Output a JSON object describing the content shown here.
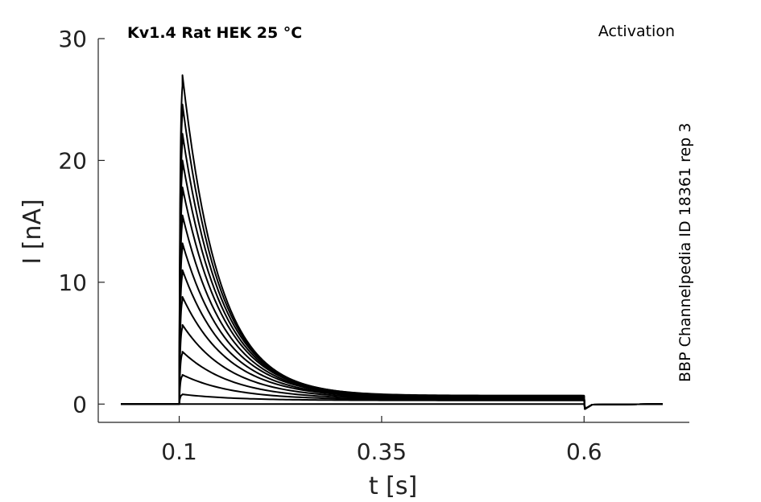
{
  "chart_data": {
    "type": "line",
    "title": "Kv1.4  Rat  HEK  25 °C",
    "annotation_right": "Activation",
    "side_label": "BBP Channelpedia ID 18361 rep 3",
    "xlabel": "t [s]",
    "ylabel": "I [nA]",
    "xlim": [
      -0.0,
      0.73
    ],
    "ylim": [
      -1.5,
      30
    ],
    "xticks": [
      0.1,
      0.35,
      0.6
    ],
    "xtick_labels": [
      "0.1",
      "0.35",
      "0.6"
    ],
    "yticks": [
      0,
      10,
      20,
      30
    ],
    "ytick_labels": [
      "0",
      "10",
      "20",
      "30"
    ],
    "grid": false,
    "legend": "none",
    "colors": {
      "trace": "#000000",
      "axis": "#222222"
    },
    "protocol": {
      "pre_start": 0.028,
      "step_on": 0.1,
      "step_off": 0.6,
      "end": 0.697
    },
    "series": [
      {
        "peak": 0.0,
        "plateau": 0.0
      },
      {
        "peak": 0.8,
        "plateau": 0.3
      },
      {
        "peak": 2.4,
        "plateau": 0.35
      },
      {
        "peak": 4.3,
        "plateau": 0.4
      },
      {
        "peak": 6.5,
        "plateau": 0.45
      },
      {
        "peak": 8.8,
        "plateau": 0.5
      },
      {
        "peak": 11.0,
        "plateau": 0.5
      },
      {
        "peak": 13.2,
        "plateau": 0.55
      },
      {
        "peak": 15.5,
        "plateau": 0.55
      },
      {
        "peak": 17.8,
        "plateau": 0.6
      },
      {
        "peak": 20.0,
        "plateau": 0.6
      },
      {
        "peak": 22.2,
        "plateau": 0.65
      },
      {
        "peak": 24.6,
        "plateau": 0.65
      },
      {
        "peak": 27.0,
        "plateau": 0.7
      }
    ]
  }
}
